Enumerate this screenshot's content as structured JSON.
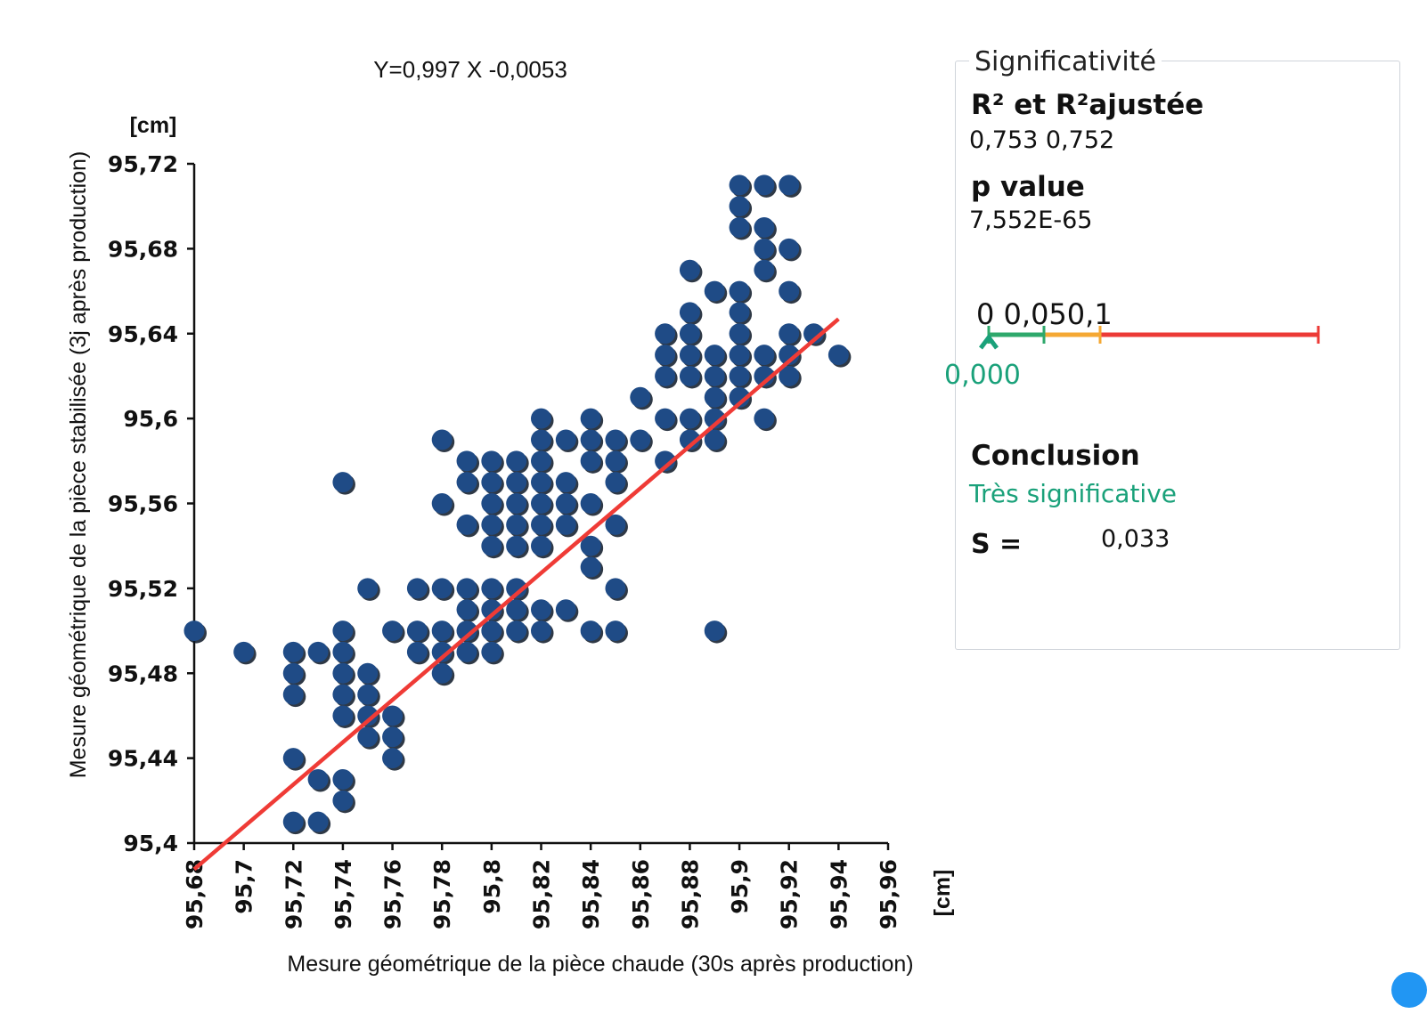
{
  "chart_data": {
    "type": "scatter",
    "equation": "Y=0,997 X -0,0053",
    "xlabel": "Mesure géométrique de la pièce chaude (30s après production)",
    "ylabel": "Mesure géométrique de la pièce stabilisée (3j après production)",
    "x_unit": "[cm]",
    "y_unit": "[cm]",
    "xlim": [
      95.68,
      95.96
    ],
    "ylim": [
      95.4,
      95.72
    ],
    "x_ticks": [
      "95,68",
      "95,7",
      "95,72",
      "95,74",
      "95,76",
      "95,78",
      "95,8",
      "95,82",
      "95,84",
      "95,86",
      "95,88",
      "95,9",
      "95,92",
      "95,94",
      "95,96"
    ],
    "y_ticks": [
      "95,4",
      "95,44",
      "95,48",
      "95,52",
      "95,56",
      "95,6",
      "95,64",
      "95,68",
      "95,72"
    ],
    "regression": {
      "slope": 0.997,
      "intercept": -0.0053,
      "x_range": [
        95.68,
        95.94
      ],
      "color": "#ef3b36"
    },
    "point_color": "#1f4b86",
    "points": [
      [
        95.68,
        95.5
      ],
      [
        95.7,
        95.49
      ],
      [
        95.72,
        95.49
      ],
      [
        95.72,
        95.48
      ],
      [
        95.72,
        95.47
      ],
      [
        95.72,
        95.44
      ],
      [
        95.72,
        95.41
      ],
      [
        95.73,
        95.49
      ],
      [
        95.73,
        95.43
      ],
      [
        95.73,
        95.41
      ],
      [
        95.74,
        95.57
      ],
      [
        95.74,
        95.5
      ],
      [
        95.74,
        95.49
      ],
      [
        95.74,
        95.48
      ],
      [
        95.74,
        95.47
      ],
      [
        95.74,
        95.46
      ],
      [
        95.74,
        95.43
      ],
      [
        95.74,
        95.42
      ],
      [
        95.75,
        95.52
      ],
      [
        95.75,
        95.48
      ],
      [
        95.75,
        95.47
      ],
      [
        95.75,
        95.46
      ],
      [
        95.75,
        95.45
      ],
      [
        95.76,
        95.5
      ],
      [
        95.76,
        95.46
      ],
      [
        95.76,
        95.45
      ],
      [
        95.76,
        95.44
      ],
      [
        95.77,
        95.52
      ],
      [
        95.77,
        95.5
      ],
      [
        95.77,
        95.49
      ],
      [
        95.78,
        95.59
      ],
      [
        95.78,
        95.56
      ],
      [
        95.78,
        95.52
      ],
      [
        95.78,
        95.5
      ],
      [
        95.78,
        95.49
      ],
      [
        95.78,
        95.48
      ],
      [
        95.79,
        95.58
      ],
      [
        95.79,
        95.57
      ],
      [
        95.79,
        95.55
      ],
      [
        95.79,
        95.52
      ],
      [
        95.79,
        95.51
      ],
      [
        95.79,
        95.5
      ],
      [
        95.79,
        95.49
      ],
      [
        95.8,
        95.58
      ],
      [
        95.8,
        95.57
      ],
      [
        95.8,
        95.56
      ],
      [
        95.8,
        95.55
      ],
      [
        95.8,
        95.54
      ],
      [
        95.8,
        95.52
      ],
      [
        95.8,
        95.51
      ],
      [
        95.8,
        95.5
      ],
      [
        95.8,
        95.49
      ],
      [
        95.81,
        95.58
      ],
      [
        95.81,
        95.57
      ],
      [
        95.81,
        95.56
      ],
      [
        95.81,
        95.55
      ],
      [
        95.81,
        95.54
      ],
      [
        95.81,
        95.52
      ],
      [
        95.81,
        95.51
      ],
      [
        95.81,
        95.5
      ],
      [
        95.82,
        95.6
      ],
      [
        95.82,
        95.59
      ],
      [
        95.82,
        95.58
      ],
      [
        95.82,
        95.57
      ],
      [
        95.82,
        95.56
      ],
      [
        95.82,
        95.55
      ],
      [
        95.82,
        95.54
      ],
      [
        95.82,
        95.51
      ],
      [
        95.82,
        95.5
      ],
      [
        95.83,
        95.59
      ],
      [
        95.83,
        95.57
      ],
      [
        95.83,
        95.56
      ],
      [
        95.83,
        95.55
      ],
      [
        95.83,
        95.51
      ],
      [
        95.84,
        95.6
      ],
      [
        95.84,
        95.59
      ],
      [
        95.84,
        95.58
      ],
      [
        95.84,
        95.56
      ],
      [
        95.84,
        95.54
      ],
      [
        95.84,
        95.53
      ],
      [
        95.84,
        95.5
      ],
      [
        95.85,
        95.59
      ],
      [
        95.85,
        95.58
      ],
      [
        95.85,
        95.57
      ],
      [
        95.85,
        95.55
      ],
      [
        95.85,
        95.52
      ],
      [
        95.85,
        95.5
      ],
      [
        95.86,
        95.61
      ],
      [
        95.86,
        95.59
      ],
      [
        95.87,
        95.64
      ],
      [
        95.87,
        95.63
      ],
      [
        95.87,
        95.62
      ],
      [
        95.87,
        95.6
      ],
      [
        95.87,
        95.58
      ],
      [
        95.88,
        95.67
      ],
      [
        95.88,
        95.65
      ],
      [
        95.88,
        95.64
      ],
      [
        95.88,
        95.63
      ],
      [
        95.88,
        95.62
      ],
      [
        95.88,
        95.6
      ],
      [
        95.88,
        95.59
      ],
      [
        95.89,
        95.66
      ],
      [
        95.89,
        95.63
      ],
      [
        95.89,
        95.62
      ],
      [
        95.89,
        95.61
      ],
      [
        95.89,
        95.6
      ],
      [
        95.89,
        95.59
      ],
      [
        95.89,
        95.5
      ],
      [
        95.9,
        95.71
      ],
      [
        95.9,
        95.7
      ],
      [
        95.9,
        95.69
      ],
      [
        95.9,
        95.66
      ],
      [
        95.9,
        95.65
      ],
      [
        95.9,
        95.64
      ],
      [
        95.9,
        95.63
      ],
      [
        95.9,
        95.62
      ],
      [
        95.9,
        95.61
      ],
      [
        95.91,
        95.71
      ],
      [
        95.91,
        95.69
      ],
      [
        95.91,
        95.68
      ],
      [
        95.91,
        95.67
      ],
      [
        95.91,
        95.63
      ],
      [
        95.91,
        95.62
      ],
      [
        95.91,
        95.6
      ],
      [
        95.92,
        95.71
      ],
      [
        95.92,
        95.68
      ],
      [
        95.92,
        95.66
      ],
      [
        95.92,
        95.64
      ],
      [
        95.92,
        95.63
      ],
      [
        95.92,
        95.62
      ],
      [
        95.93,
        95.64
      ],
      [
        95.94,
        95.63
      ]
    ]
  },
  "panel": {
    "title": "Significativité",
    "r2_label": "R² et R²ajustée",
    "r2_values": "0,753  0,752",
    "pvalue_label": "p value",
    "pvalue": "7,552E-65",
    "scale_labels": "0 0,050,1",
    "pvalue_short": "0,000",
    "scale_colors": {
      "green": "#2ea86b",
      "orange": "#f5a833",
      "red": "#ec3a36",
      "marker": "#1aa17a"
    },
    "pvalue_position": 0,
    "conclusion_label": "Conclusion",
    "conclusion_value": "Très significative",
    "conclusion_color": "#1aa17a",
    "s_label": "S =",
    "s_value": "0,033"
  }
}
